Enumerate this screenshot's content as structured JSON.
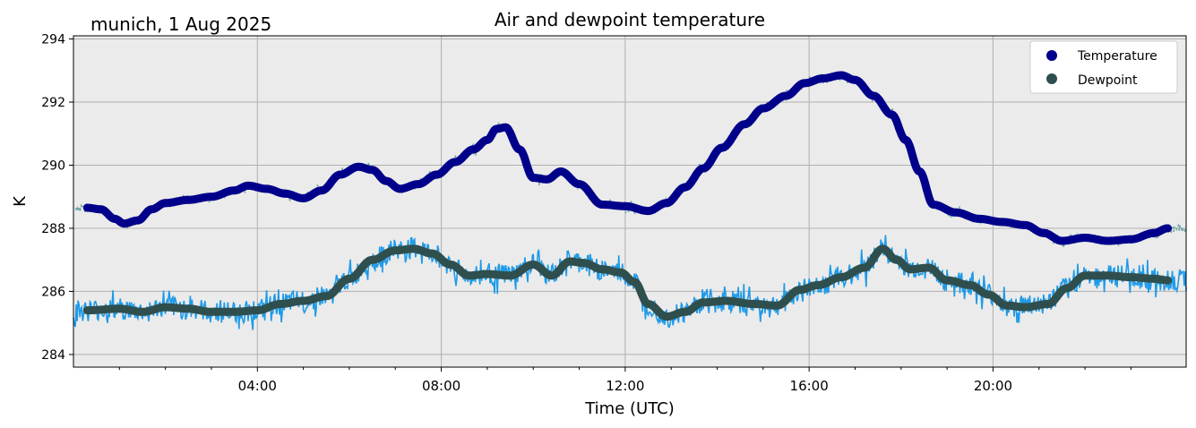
{
  "chart_data": {
    "type": "line",
    "title": "Air and dewpoint temperature",
    "location_label": "munich, 1 Aug 2025",
    "xlabel": "Time (UTC)",
    "ylabel": "K",
    "xlim_hours": [
      0,
      24.2
    ],
    "ylim": [
      283.6,
      294.1
    ],
    "xticks": [
      {
        "hour": 4,
        "label": "04:00"
      },
      {
        "hour": 8,
        "label": "08:00"
      },
      {
        "hour": 12,
        "label": "12:00"
      },
      {
        "hour": 16,
        "label": "16:00"
      },
      {
        "hour": 20,
        "label": "20:00"
      }
    ],
    "yticks": [
      {
        "value": 284,
        "label": "284"
      },
      {
        "value": 286,
        "label": "286"
      },
      {
        "value": 288,
        "label": "288"
      },
      {
        "value": 290,
        "label": "290"
      },
      {
        "value": 292,
        "label": "292"
      },
      {
        "value": 294,
        "label": "294"
      }
    ],
    "grid": true,
    "legend_position": "top-right",
    "colors": {
      "background": "#ebebeb",
      "temperature": "#00008b",
      "temperature_raw": "#6fa6a6",
      "dewpoint": "#2f4f4f",
      "dewpoint_raw": "#1e9ae8",
      "grid": "#b0b0b0"
    },
    "series": [
      {
        "name": "Temperature",
        "x": [
          0.3,
          0.6,
          0.9,
          1.1,
          1.4,
          1.7,
          2.0,
          2.5,
          3.0,
          3.5,
          3.8,
          4.2,
          4.6,
          5.0,
          5.4,
          5.8,
          6.2,
          6.5,
          6.8,
          7.1,
          7.5,
          7.9,
          8.3,
          8.7,
          9.0,
          9.2,
          9.4,
          9.7,
          10.0,
          10.3,
          10.6,
          11.0,
          11.5,
          12.0,
          12.5,
          12.9,
          13.3,
          13.7,
          14.1,
          14.6,
          15.0,
          15.5,
          15.9,
          16.3,
          16.7,
          17.0,
          17.4,
          17.8,
          18.1,
          18.4,
          18.7,
          19.2,
          19.7,
          20.2,
          20.7,
          21.1,
          21.5,
          22.0,
          22.5,
          23.0,
          23.5,
          23.8
        ],
        "values": [
          288.65,
          288.6,
          288.3,
          288.15,
          288.25,
          288.6,
          288.8,
          288.9,
          289.0,
          289.2,
          289.35,
          289.25,
          289.1,
          288.95,
          289.2,
          289.7,
          289.95,
          289.85,
          289.5,
          289.25,
          289.4,
          289.7,
          290.1,
          290.5,
          290.8,
          291.15,
          291.2,
          290.5,
          289.6,
          289.55,
          289.8,
          289.4,
          288.75,
          288.7,
          288.55,
          288.8,
          289.3,
          289.9,
          290.55,
          291.3,
          291.8,
          292.2,
          292.6,
          292.75,
          292.85,
          292.7,
          292.2,
          291.6,
          290.8,
          289.8,
          288.75,
          288.5,
          288.3,
          288.2,
          288.1,
          287.85,
          287.6,
          287.7,
          287.6,
          287.65,
          287.85,
          288.0
        ]
      },
      {
        "name": "Dewpoint",
        "x": [
          0.3,
          1.0,
          1.5,
          2.0,
          2.5,
          3.0,
          3.5,
          4.0,
          4.5,
          5.0,
          5.5,
          6.0,
          6.5,
          7.0,
          7.4,
          7.8,
          8.2,
          8.6,
          9.0,
          9.5,
          10.0,
          10.4,
          10.8,
          11.1,
          11.5,
          11.9,
          12.2,
          12.5,
          12.9,
          13.3,
          13.7,
          14.2,
          14.8,
          15.3,
          15.8,
          16.2,
          16.7,
          17.2,
          17.6,
          17.9,
          18.2,
          18.6,
          19.0,
          19.5,
          19.9,
          20.3,
          20.7,
          21.2,
          21.6,
          22.0,
          22.5,
          23.0,
          23.5,
          23.8
        ],
        "values": [
          285.4,
          285.45,
          285.35,
          285.5,
          285.45,
          285.35,
          285.35,
          285.4,
          285.6,
          285.7,
          285.85,
          286.4,
          287.0,
          287.3,
          287.35,
          287.2,
          286.85,
          286.5,
          286.55,
          286.5,
          286.85,
          286.5,
          286.95,
          286.9,
          286.7,
          286.6,
          286.3,
          285.6,
          285.2,
          285.35,
          285.65,
          285.7,
          285.6,
          285.55,
          286.05,
          286.2,
          286.45,
          286.75,
          287.35,
          287.0,
          286.7,
          286.75,
          286.35,
          286.2,
          285.9,
          285.55,
          285.5,
          285.6,
          286.1,
          286.5,
          286.5,
          286.45,
          286.4,
          286.35
        ]
      }
    ],
    "legend": [
      {
        "label": "Temperature",
        "series": "Temperature"
      },
      {
        "label": "Dewpoint",
        "series": "Dewpoint"
      }
    ]
  }
}
